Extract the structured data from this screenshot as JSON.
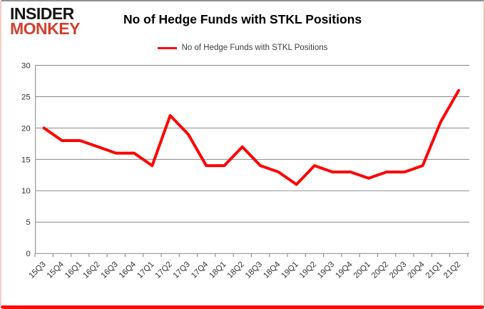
{
  "logo": {
    "line1": "INSIDER",
    "line2": "MONKEY",
    "brand_color": "#d2402d"
  },
  "chart_data": {
    "type": "line",
    "title": "No of Hedge Funds with STKL Positions",
    "categories": [
      "15Q3",
      "15Q4",
      "16Q1",
      "16Q2",
      "16Q3",
      "16Q4",
      "17Q1",
      "17Q2",
      "17Q3",
      "17Q4",
      "18Q1",
      "18Q2",
      "18Q3",
      "18Q4",
      "19Q1",
      "19Q2",
      "19Q3",
      "19Q4",
      "20Q1",
      "20Q2",
      "20Q3",
      "20Q4",
      "21Q1",
      "21Q2"
    ],
    "series": [
      {
        "name": "No of Hedge Funds with STKL Positions",
        "color": "#ff0000",
        "values": [
          20,
          18,
          18,
          17,
          16,
          16,
          14,
          22,
          19,
          14,
          14,
          17,
          14,
          13,
          11,
          14,
          13,
          13,
          12,
          13,
          13,
          14,
          21,
          26
        ]
      }
    ],
    "xlabel": "",
    "ylabel": "",
    "ylim": [
      0,
      30
    ],
    "yticks": [
      0,
      5,
      10,
      15,
      20,
      25,
      30
    ],
    "grid": true,
    "legend_position": "top-center",
    "line_width": 4
  },
  "styles": {
    "grid_color": "#878787",
    "axis_color": "#808080",
    "tick_label_color": "#333333",
    "legend_text_color": "#404040",
    "bottom_border_color": "#fb0d0a"
  }
}
